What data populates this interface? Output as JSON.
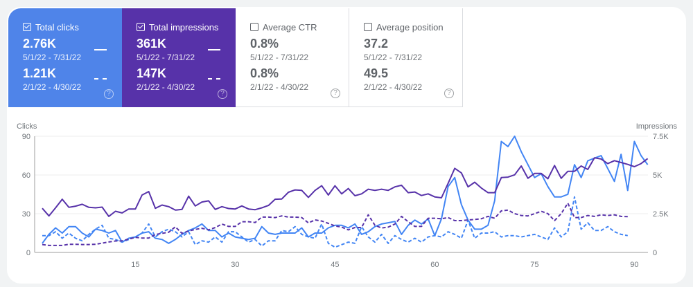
{
  "cards": [
    {
      "title": "Total clicks",
      "checked": true,
      "current": "2.76K",
      "current_range": "5/1/22 - 7/31/22",
      "previous": "1.21K",
      "previous_range": "2/1/22 - 4/30/22",
      "color": "#4f84e9"
    },
    {
      "title": "Total impressions",
      "checked": true,
      "current": "361K",
      "current_range": "5/1/22 - 7/31/22",
      "previous": "147K",
      "previous_range": "2/1/22 - 4/30/22",
      "color": "#5732a9"
    },
    {
      "title": "Average CTR",
      "checked": false,
      "current": "0.8%",
      "current_range": "5/1/22 - 7/31/22",
      "previous": "0.8%",
      "previous_range": "2/1/22 - 4/30/22"
    },
    {
      "title": "Average position",
      "checked": false,
      "current": "37.2",
      "current_range": "5/1/22 - 7/31/22",
      "previous": "49.5",
      "previous_range": "2/1/22 - 4/30/22"
    }
  ],
  "help_icon": "?",
  "chart_data": {
    "type": "line",
    "ylabel_left": "Clicks",
    "ylabel_right": "Impressions",
    "x_ticks": [
      "15",
      "30",
      "45",
      "60",
      "75",
      "90"
    ],
    "y_left_ticks": [
      "0",
      "30",
      "60",
      "90"
    ],
    "ylim_left": [
      0,
      90
    ],
    "y_right_ticks": [
      "0",
      "2.5K",
      "5K",
      "7.5K"
    ],
    "ylim_right": [
      0,
      7500
    ],
    "grid": true,
    "series": [
      {
        "metric": "clicks",
        "period": "current",
        "axis": "left",
        "style": "solid",
        "color": "#4285f4",
        "values": [
          7,
          14,
          19,
          15,
          20,
          20,
          15,
          12,
          18,
          17,
          15,
          17,
          8,
          11,
          12,
          15,
          16,
          11,
          10,
          7,
          10,
          14,
          17,
          19,
          22,
          17,
          17,
          12,
          15,
          12,
          11,
          10,
          11,
          20,
          15,
          14,
          15,
          15,
          15,
          19,
          12,
          15,
          15,
          19,
          21,
          21,
          19,
          22,
          14,
          16,
          20,
          22,
          23,
          24,
          14,
          21,
          25,
          22,
          26,
          13,
          26,
          51,
          58,
          37,
          25,
          18,
          18,
          21,
          40,
          86,
          82,
          90,
          78,
          68,
          58,
          61,
          51,
          43,
          43,
          45,
          68,
          58,
          71,
          73,
          75,
          65,
          55,
          76,
          48,
          86,
          75,
          68
        ]
      },
      {
        "metric": "impressions",
        "period": "current",
        "axis": "right",
        "style": "solid",
        "color": "#5732a9",
        "values": [
          2850,
          2355,
          2880,
          3435,
          2910,
          2985,
          3105,
          2910,
          2880,
          2925,
          2325,
          2655,
          2550,
          2805,
          2805,
          3705,
          3930,
          2850,
          3060,
          2955,
          2730,
          2775,
          3630,
          3000,
          3255,
          3330,
          2775,
          2955,
          2835,
          2805,
          3000,
          2805,
          2760,
          2880,
          3030,
          3435,
          3450,
          3885,
          4035,
          4005,
          3555,
          4005,
          4305,
          3705,
          4305,
          3780,
          4125,
          3660,
          3780,
          4080,
          4005,
          4080,
          4005,
          4230,
          4335,
          3855,
          3900,
          3675,
          3780,
          3585,
          3525,
          4455,
          5430,
          5130,
          4230,
          4530,
          4155,
          3855,
          3855,
          4830,
          4860,
          5010,
          5580,
          4785,
          5100,
          5100,
          4755,
          5610,
          4785,
          5235,
          5235,
          5580,
          5355,
          6105,
          6030,
          5730,
          5925,
          5805,
          5685,
          5535,
          5730,
          6060
        ]
      },
      {
        "metric": "clicks",
        "period": "previous",
        "axis": "left",
        "style": "dashed",
        "color": "#4285f4",
        "values": [
          13,
          13,
          16,
          11,
          15,
          11,
          9,
          14,
          18,
          21,
          11,
          10,
          8,
          10,
          12,
          15,
          22,
          12,
          16,
          18,
          16,
          12,
          16,
          6,
          9,
          8,
          12,
          8,
          16,
          16,
          12,
          8,
          10,
          5,
          9,
          9,
          17,
          16,
          20,
          14,
          12,
          11,
          22,
          7,
          4,
          6,
          8,
          7,
          20,
          12,
          8,
          14,
          7,
          13,
          10,
          8,
          11,
          8,
          12,
          13,
          12,
          16,
          14,
          11,
          25,
          11,
          15,
          15,
          16,
          12,
          13,
          13,
          12,
          13,
          14,
          12,
          10,
          19,
          12,
          16,
          43,
          18,
          23,
          17,
          17,
          20,
          16,
          14,
          13
        ]
      },
      {
        "metric": "impressions",
        "period": "previous",
        "axis": "right",
        "style": "dashed",
        "color": "#5732a9",
        "values": [
          510,
          450,
          450,
          450,
          525,
          525,
          510,
          510,
          525,
          600,
          675,
          735,
          750,
          855,
          975,
          930,
          930,
          1155,
          1230,
          1305,
          1650,
          1230,
          1380,
          1485,
          1560,
          1455,
          1605,
          1830,
          1680,
          1680,
          1980,
          1980,
          1935,
          2280,
          2280,
          2250,
          2355,
          2280,
          2280,
          2250,
          1905,
          2100,
          2025,
          1875,
          1710,
          1635,
          1455,
          1605,
          1605,
          2430,
          1755,
          1575,
          1635,
          1830,
          2325,
          1980,
          1680,
          1680,
          2205,
          2205,
          2175,
          2250,
          2055,
          2055,
          2100,
          2130,
          2175,
          2325,
          2205,
          2685,
          2730,
          2505,
          2385,
          2355,
          2505,
          2655,
          2505,
          2055,
          2505,
          3180,
          2250,
          2250,
          2385,
          2325,
          2430,
          2385,
          2430,
          2325,
          2310
        ]
      }
    ]
  }
}
